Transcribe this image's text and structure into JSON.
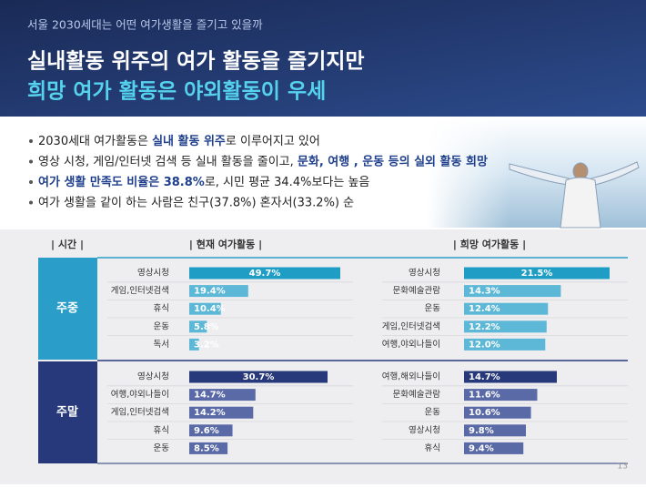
{
  "header": {
    "subtitle": "서울 2030세대는 어떤 여가생활을 즐기고 있을까",
    "title_line1": "실내활동 위주의 여가 활동을 즐기지만",
    "title_line2": "희망 여가 활동은 야외활동이 우세"
  },
  "bullets": [
    [
      {
        "text": "2030세대 여가활동은 ",
        "bold": false
      },
      {
        "text": "실내 활동 위주",
        "bold": true
      },
      {
        "text": "로 이루어지고 있어",
        "bold": false
      }
    ],
    [
      {
        "text": "영상 시청, 게임/인터넷 검색 등 실내 활동을 줄이고, ",
        "bold": false
      },
      {
        "text": "문화, 여행 , 운동 등의 실외 활동 희망",
        "bold": true
      }
    ],
    [
      {
        "text": "여가 생활 만족도 비율은 38.8%",
        "bold": true
      },
      {
        "text": "로, 시민 평균 34.4%보다는 높음",
        "bold": false
      }
    ],
    [
      {
        "text": "여가 생활을 같이 하는 사람은 친구(37.8%) 혼자서(33.2%) 순",
        "bold": false
      }
    ]
  ],
  "column_headers": {
    "time": "| 시간 |",
    "current": "| 현재 여가활동 |",
    "hope": "| 희망 여가활동 |"
  },
  "periods": [
    "주중",
    "주말"
  ],
  "page_number": "13",
  "chart_data": [
    {
      "type": "bar",
      "orientation": "horizontal",
      "period": "주중",
      "group": "현재",
      "categories": [
        "영상시청",
        "게임,인터넷검색",
        "휴식",
        "운동",
        "독서"
      ],
      "values": [
        49.7,
        19.4,
        10.4,
        5.8,
        3.2
      ],
      "value_labels": [
        "49.7%",
        "19.4%",
        "10.4%",
        "5.8%",
        "3.2%"
      ],
      "colors": [
        "#1f9dc4",
        "#5cb8d6",
        "#5cb8d6",
        "#5cb8d6",
        "#5cb8d6"
      ]
    },
    {
      "type": "bar",
      "orientation": "horizontal",
      "period": "주말",
      "group": "현재",
      "categories": [
        "영상시청",
        "여행,야외나들이",
        "게임,인터넷검색",
        "휴식",
        "운동"
      ],
      "values": [
        30.7,
        14.7,
        14.2,
        9.6,
        8.5
      ],
      "value_labels": [
        "30.7%",
        "14.7%",
        "14.2%",
        "9.6%",
        "8.5%"
      ],
      "colors": [
        "#27397a",
        "#5a6aa6",
        "#5a6aa6",
        "#5a6aa6",
        "#5a6aa6"
      ]
    },
    {
      "type": "bar",
      "orientation": "horizontal",
      "period": "주중",
      "group": "희망",
      "categories": [
        "영상시청",
        "문화예술관람",
        "운동",
        "게임,인터넷검색",
        "여행,야외나들이"
      ],
      "values": [
        21.5,
        14.3,
        12.4,
        12.2,
        12.0
      ],
      "value_labels": [
        "21.5%",
        "14.3%",
        "12.4%",
        "12.2%",
        "12.0%"
      ],
      "colors": [
        "#1f9dc4",
        "#5cb8d6",
        "#5cb8d6",
        "#5cb8d6",
        "#5cb8d6"
      ]
    },
    {
      "type": "bar",
      "orientation": "horizontal",
      "period": "주말",
      "group": "희망",
      "categories": [
        "여행,해외나들이",
        "문화예술관람",
        "운동",
        "영상시청",
        "휴식"
      ],
      "values": [
        14.7,
        11.6,
        10.6,
        9.8,
        9.4
      ],
      "value_labels": [
        "14.7%",
        "11.6%",
        "10.6%",
        "9.8%",
        "9.4%"
      ],
      "colors": [
        "#27397a",
        "#5a6aa6",
        "#5a6aa6",
        "#5a6aa6",
        "#5a6aa6"
      ]
    }
  ]
}
